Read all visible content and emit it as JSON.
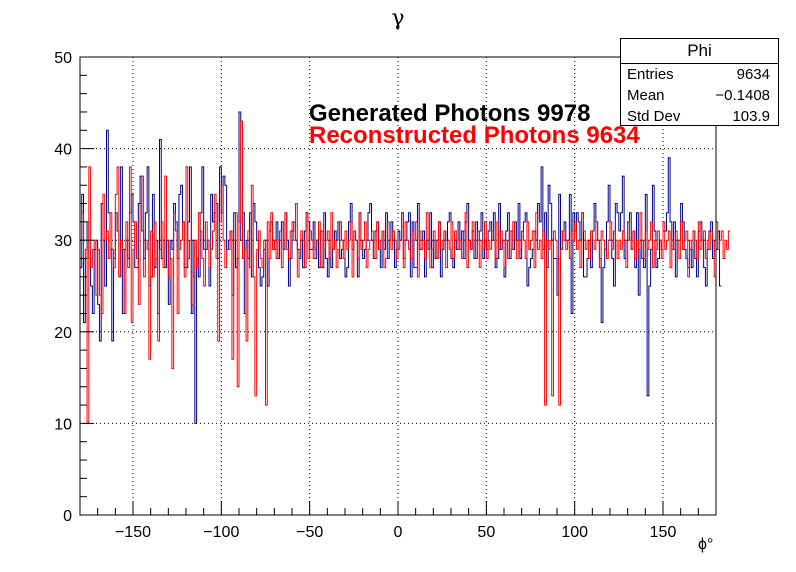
{
  "chart_data": {
    "type": "histogram",
    "title": "γ",
    "xlabel": "ϕ°",
    "ylabel": "",
    "xlim": [
      -180,
      180
    ],
    "ylim": [
      0,
      50
    ],
    "x_ticks": [
      -150,
      -100,
      -50,
      0,
      50,
      100,
      150
    ],
    "y_ticks": [
      0,
      10,
      20,
      30,
      40,
      50
    ],
    "grid": true,
    "bins": 360,
    "series": [
      {
        "name": "Generated Photons 9978",
        "color": "#00008b",
        "values": [
          27,
          35,
          21,
          28,
          32,
          28,
          25,
          22,
          29,
          30,
          23,
          19,
          34,
          30,
          25,
          42,
          33,
          29,
          19,
          28,
          33,
          31,
          26,
          38,
          22,
          29,
          30,
          28,
          33,
          35,
          32,
          27,
          27,
          34,
          37,
          31,
          28,
          33,
          38,
          25,
          26,
          35,
          27,
          30,
          22,
          41,
          28,
          30,
          27,
          30,
          23,
          30,
          29,
          34,
          32,
          28,
          35,
          36,
          32,
          27,
          27,
          32,
          38,
          22,
          30,
          10,
          28,
          26,
          33,
          38,
          29,
          29,
          30,
          25,
          35,
          32,
          33,
          34,
          28,
          38,
          33,
          37,
          36,
          29,
          30,
          31,
          24,
          33,
          27,
          28,
          44,
          30,
          33,
          22,
          30,
          28,
          33,
          26,
          34,
          32,
          30,
          27,
          25,
          26,
          29,
          30,
          25,
          31,
          32,
          30,
          29,
          32,
          28,
          31,
          32,
          29,
          33,
          30,
          25,
          28,
          31,
          32,
          30,
          29,
          28,
          30,
          27,
          31,
          33,
          32,
          29,
          29,
          32,
          28,
          30,
          27,
          31,
          27,
          33,
          28,
          26,
          30,
          27,
          29,
          31,
          30,
          32,
          28,
          29,
          30,
          26,
          27,
          32,
          34,
          29,
          31,
          30,
          26,
          33,
          30,
          28,
          29,
          30,
          33,
          34,
          30,
          28,
          31,
          32,
          29,
          27,
          31,
          29,
          33,
          28,
          30,
          32,
          30,
          27,
          29,
          31,
          30,
          33,
          28,
          30,
          32,
          33,
          26,
          32,
          27,
          27,
          34,
          29,
          30,
          31,
          26,
          30,
          29,
          33,
          27,
          30,
          28,
          30,
          32,
          26,
          29,
          31,
          30,
          32,
          33,
          28,
          27,
          30,
          29,
          32,
          29,
          31,
          28,
          32,
          34,
          30,
          29,
          31,
          28,
          32,
          30,
          31,
          33,
          28,
          30,
          29,
          31,
          32,
          30,
          33,
          27,
          28,
          34,
          29,
          30,
          26,
          31,
          33,
          28,
          31,
          29,
          32,
          30,
          34,
          28,
          31,
          32,
          33,
          25,
          27,
          28,
          29,
          31,
          30,
          34,
          32,
          38,
          29,
          33,
          27,
          36,
          34,
          30,
          28,
          28,
          24,
          35,
          29,
          31,
          32,
          30,
          30,
          35,
          22,
          33,
          31,
          33,
          32,
          30,
          33,
          26,
          26,
          28,
          30,
          27,
          31,
          34,
          32,
          30,
          28,
          21,
          27,
          29,
          32,
          36,
          30,
          28,
          25,
          34,
          33,
          31,
          33,
          37,
          28,
          30,
          32,
          33,
          29,
          31,
          27,
          33,
          24,
          30,
          28,
          27,
          35,
          13,
          25,
          29,
          36,
          31,
          27,
          28,
          30,
          29,
          31,
          31,
          33,
          39,
          32,
          29,
          32,
          26,
          30,
          30,
          34,
          32,
          29,
          28,
          27,
          29,
          27,
          31,
          28,
          26,
          31,
          32,
          30,
          27,
          25,
          29,
          31,
          32,
          28,
          30,
          29,
          31,
          25
        ]
      },
      {
        "name": "Reconstructed Photons 9634",
        "color": "#ff0000",
        "values": [
          30,
          33,
          28,
          29,
          10,
          38,
          27,
          29,
          30,
          24,
          29,
          24,
          22,
          35,
          30,
          31,
          28,
          33,
          29,
          27,
          35,
          38,
          26,
          30,
          29,
          22,
          32,
          27,
          38,
          21,
          29,
          32,
          28,
          23,
          34,
          37,
          26,
          30,
          29,
          17,
          31,
          26,
          32,
          28,
          19,
          29,
          32,
          27,
          37,
          30,
          26,
          28,
          16,
          33,
          31,
          22,
          29,
          30,
          32,
          26,
          38,
          28,
          30,
          23,
          26,
          30,
          27,
          33,
          31,
          28,
          25,
          32,
          30,
          27,
          29,
          31,
          35,
          28,
          19,
          32,
          36,
          30,
          27,
          29,
          29,
          31,
          17,
          30,
          33,
          14,
          32,
          43,
          28,
          29,
          19,
          31,
          27,
          36,
          26,
          13,
          29,
          31,
          28,
          27,
          30,
          12,
          32,
          28,
          33,
          29,
          30,
          28,
          30,
          31,
          27,
          30,
          33,
          29,
          28,
          31,
          32,
          30,
          34,
          26,
          29,
          31,
          30,
          27,
          33,
          28,
          31,
          30,
          28,
          29,
          30,
          32,
          27,
          31,
          29,
          30,
          31,
          28,
          33,
          29,
          30,
          27,
          29,
          32,
          30,
          28,
          31,
          29,
          30,
          32,
          26,
          31,
          30,
          28,
          33,
          29,
          30,
          32,
          27,
          29,
          30,
          31,
          30,
          28,
          32,
          29,
          30,
          31,
          27,
          28,
          32,
          30,
          29,
          31,
          30,
          28,
          29,
          30,
          33,
          27,
          32,
          30,
          29,
          28,
          31,
          30,
          32,
          26,
          31,
          29,
          30,
          28,
          33,
          30,
          27,
          29,
          31,
          30,
          28,
          32,
          29,
          30,
          31,
          27,
          30,
          29,
          32,
          28,
          31,
          30,
          29,
          30,
          28,
          31,
          33,
          27,
          30,
          29,
          32,
          30,
          28,
          31,
          27,
          30,
          29,
          32,
          28,
          30,
          29,
          31,
          30,
          28,
          32,
          29,
          31,
          30,
          27,
          30,
          28,
          31,
          29,
          32,
          30,
          28,
          30,
          29,
          31,
          30,
          28,
          32,
          29,
          30,
          31,
          27,
          33,
          29,
          30,
          28,
          31,
          12,
          30,
          29,
          30,
          13,
          31,
          30,
          28,
          12,
          29,
          31,
          30,
          29,
          30,
          28,
          31,
          30,
          32,
          29,
          30,
          27,
          33,
          31,
          29,
          30,
          28,
          31,
          30,
          29,
          32,
          30,
          27,
          31,
          30,
          29,
          28,
          30,
          32,
          29,
          31,
          30,
          28,
          30,
          29,
          31,
          30,
          27,
          32,
          30,
          29,
          31,
          28,
          30,
          29,
          33,
          30,
          28,
          31,
          29,
          30,
          32,
          27,
          30,
          29,
          31,
          30,
          28,
          32,
          29,
          30,
          31,
          27,
          30,
          29,
          31,
          30,
          28,
          32,
          29,
          30,
          31,
          26,
          30,
          29,
          31,
          30,
          28,
          32,
          29,
          30,
          31,
          28,
          30,
          29,
          31,
          30,
          26,
          32,
          29,
          30,
          31,
          28,
          30,
          29,
          31
        ]
      }
    ],
    "stats": {
      "name": "Phi",
      "rows": [
        {
          "label": "Entries",
          "value": "9634"
        },
        {
          "label": "Mean",
          "value": "−0.1408"
        },
        {
          "label": "Std Dev",
          "value": "103.9"
        }
      ]
    }
  }
}
